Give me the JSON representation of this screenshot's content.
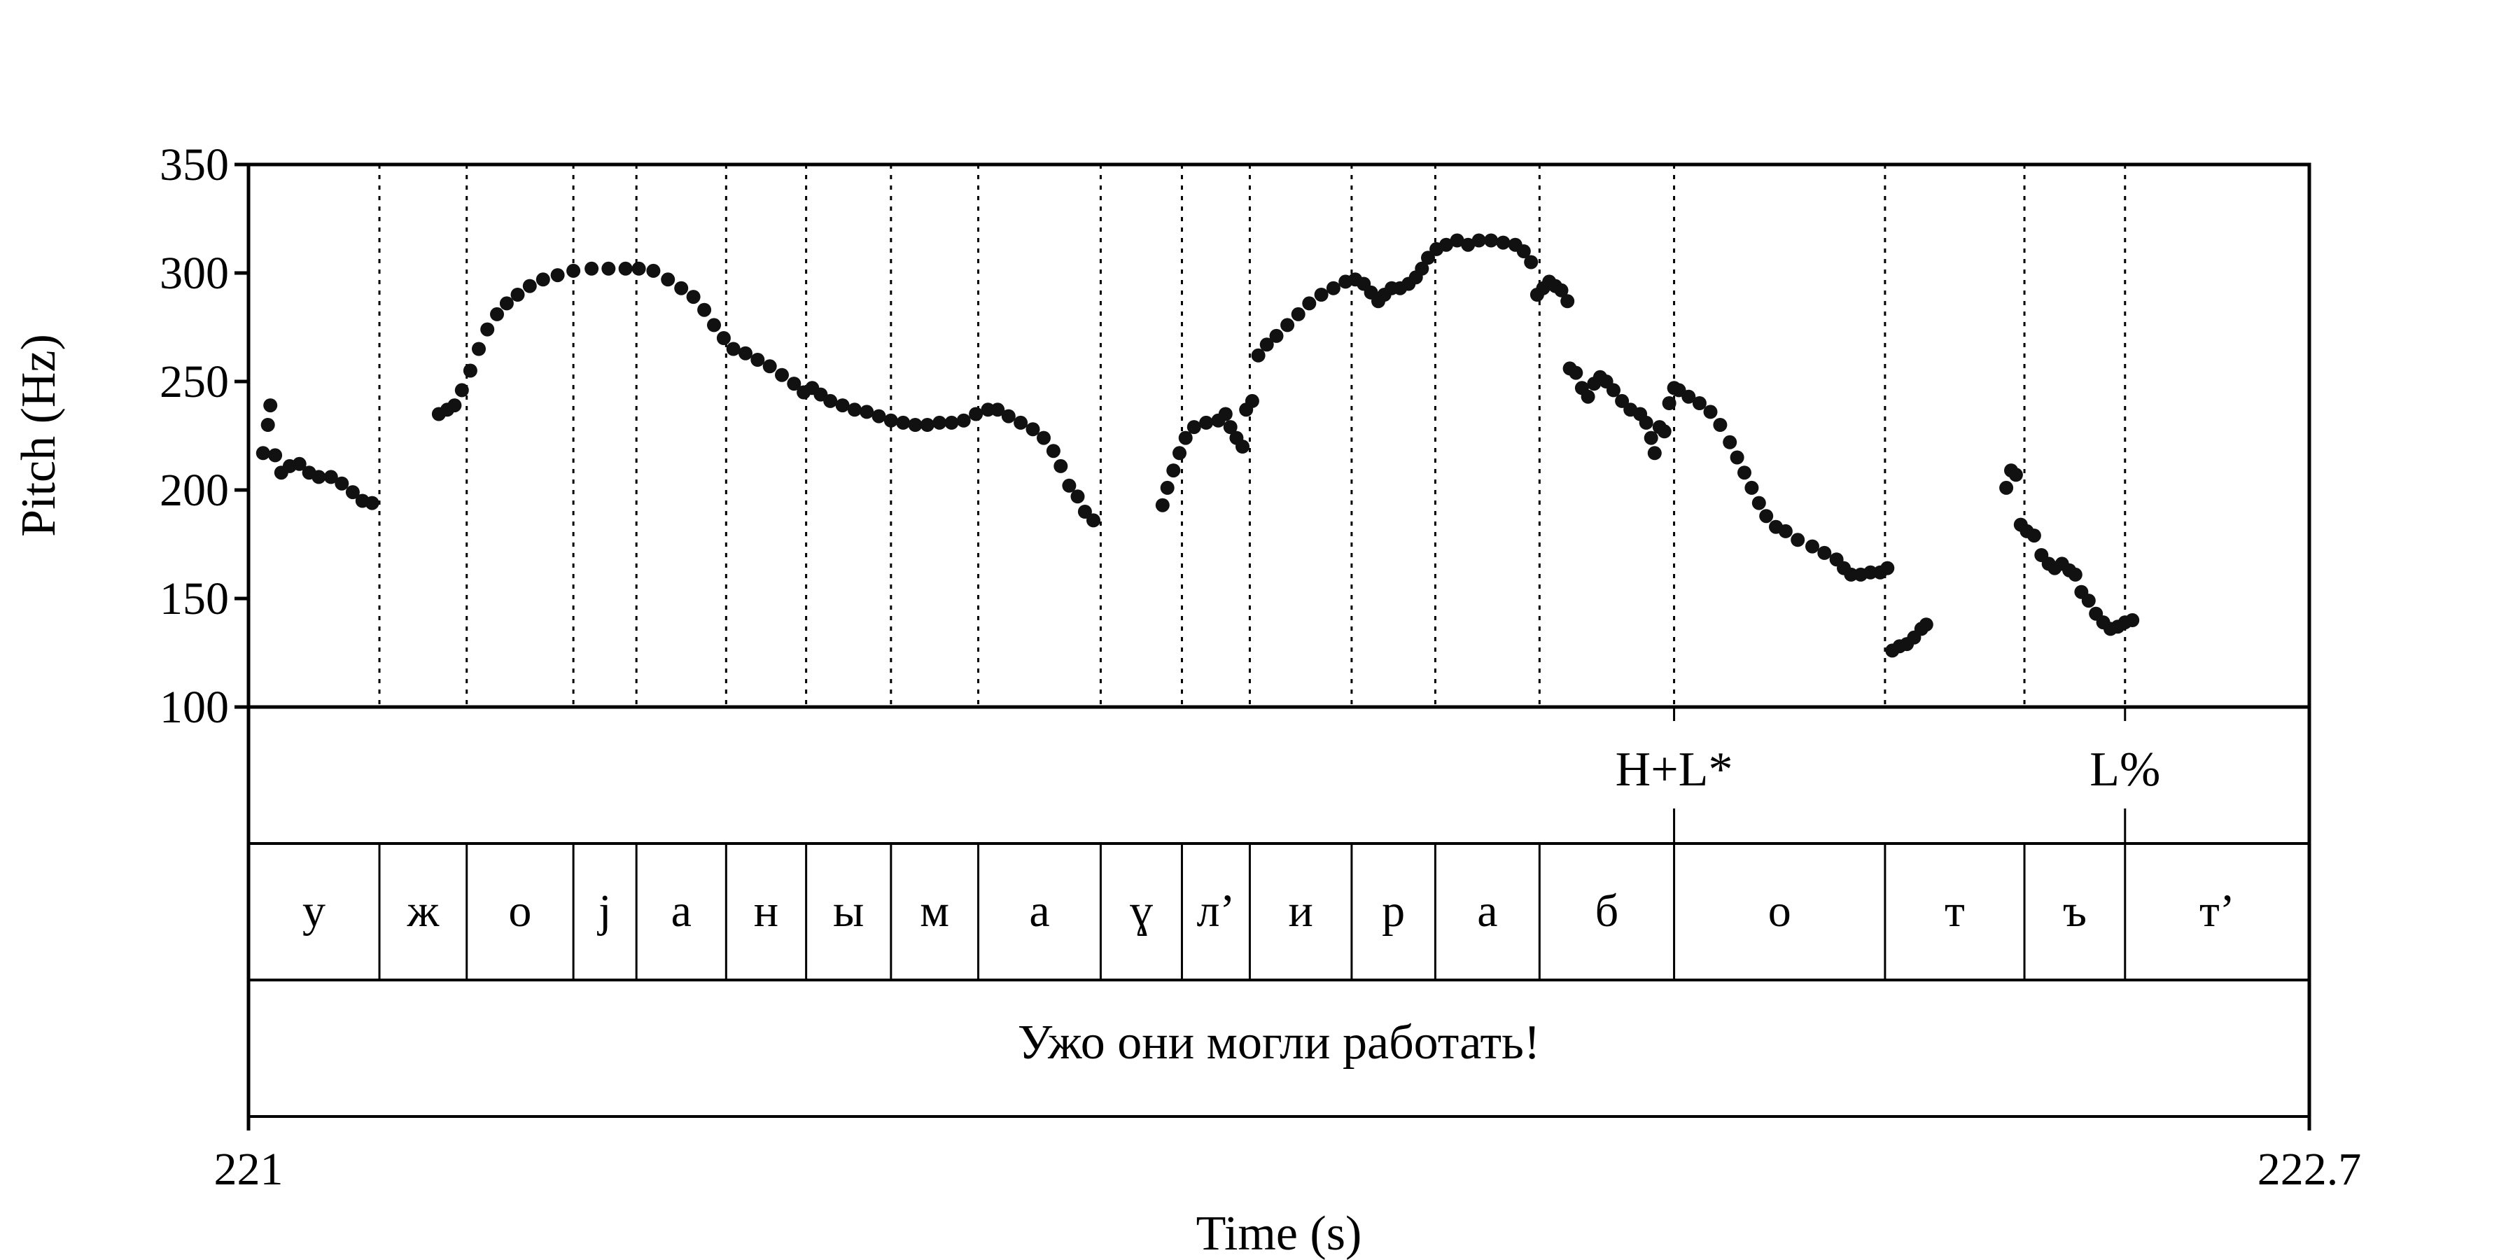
{
  "chart_data": {
    "type": "scatter",
    "title": "",
    "xlabel": "Time (s)",
    "ylabel": "Pitch (Hz)",
    "xlim": [
      221,
      222.7
    ],
    "ylim": [
      100,
      350
    ],
    "x_tick_labels": [
      "221",
      "222.7"
    ],
    "y_ticks": [
      100,
      150,
      200,
      250,
      300,
      350
    ],
    "grid": false,
    "marker_color": "#111111",
    "segment_boundaries": [
      221.108,
      221.18,
      221.268,
      221.32,
      221.394,
      221.46,
      221.53,
      221.602,
      221.703,
      221.77,
      221.826,
      221.91,
      221.979,
      222.065,
      222.176,
      222.35,
      222.465,
      222.548
    ],
    "phone_tier": [
      {
        "label": "у",
        "start": 221.0,
        "end": 221.108
      },
      {
        "label": "ж",
        "start": 221.108,
        "end": 221.18
      },
      {
        "label": "о",
        "start": 221.18,
        "end": 221.268
      },
      {
        "label": "j",
        "start": 221.268,
        "end": 221.32
      },
      {
        "label": "а",
        "start": 221.32,
        "end": 221.394
      },
      {
        "label": "н",
        "start": 221.394,
        "end": 221.46
      },
      {
        "label": "ы",
        "start": 221.46,
        "end": 221.53
      },
      {
        "label": "м",
        "start": 221.53,
        "end": 221.602
      },
      {
        "label": "а",
        "start": 221.602,
        "end": 221.703
      },
      {
        "label": "ɣ",
        "start": 221.703,
        "end": 221.77
      },
      {
        "label": "л’",
        "start": 221.77,
        "end": 221.826
      },
      {
        "label": "и",
        "start": 221.826,
        "end": 221.91
      },
      {
        "label": "р",
        "start": 221.91,
        "end": 221.979
      },
      {
        "label": "а",
        "start": 221.979,
        "end": 222.065
      },
      {
        "label": "б",
        "start": 222.065,
        "end": 222.176
      },
      {
        "label": "о",
        "start": 222.176,
        "end": 222.35
      },
      {
        "label": "т",
        "start": 222.35,
        "end": 222.465
      },
      {
        "label": "ъ",
        "start": 222.465,
        "end": 222.548
      },
      {
        "label": "т’",
        "start": 222.548,
        "end": 222.7
      }
    ],
    "tone_tier": [
      {
        "label": "H+L*",
        "time": 222.176
      },
      {
        "label": "L%",
        "time": 222.548
      }
    ],
    "sentence_tier": {
      "label": "Ужо они могли работать!",
      "start": 221.0,
      "end": 222.7
    },
    "series": [
      {
        "points": [
          [
            221.012,
            217
          ],
          [
            221.016,
            230
          ],
          [
            221.018,
            239
          ],
          [
            221.022,
            216
          ],
          [
            221.027,
            208
          ],
          [
            221.034,
            211
          ],
          [
            221.042,
            212
          ],
          [
            221.05,
            208
          ],
          [
            221.058,
            206
          ],
          [
            221.068,
            206
          ],
          [
            221.077,
            203
          ],
          [
            221.086,
            199
          ],
          [
            221.094,
            195
          ],
          [
            221.102,
            194
          ],
          [
            221.157,
            235
          ],
          [
            221.164,
            237
          ],
          [
            221.17,
            239
          ],
          [
            221.176,
            246
          ],
          [
            221.183,
            255
          ],
          [
            221.19,
            265
          ],
          [
            221.197,
            274
          ],
          [
            221.205,
            281
          ],
          [
            221.213,
            286
          ],
          [
            221.222,
            290
          ],
          [
            221.232,
            294
          ],
          [
            221.243,
            297
          ],
          [
            221.255,
            299
          ],
          [
            221.268,
            301
          ],
          [
            221.283,
            302
          ],
          [
            221.297,
            302
          ],
          [
            221.311,
            302
          ],
          [
            221.322,
            302
          ],
          [
            221.334,
            301
          ],
          [
            221.346,
            297
          ],
          [
            221.357,
            293
          ],
          [
            221.367,
            289
          ],
          [
            221.376,
            283
          ],
          [
            221.384,
            276
          ],
          [
            221.392,
            270
          ],
          [
            221.4,
            265
          ],
          [
            221.41,
            263
          ],
          [
            221.42,
            260
          ],
          [
            221.43,
            257
          ],
          [
            221.44,
            253
          ],
          [
            221.45,
            249
          ],
          [
            221.458,
            245
          ],
          [
            221.465,
            247
          ],
          [
            221.472,
            244
          ],
          [
            221.48,
            241
          ],
          [
            221.49,
            239
          ],
          [
            221.5,
            237
          ],
          [
            221.51,
            236
          ],
          [
            221.52,
            234
          ],
          [
            221.53,
            232
          ],
          [
            221.54,
            231
          ],
          [
            221.55,
            230
          ],
          [
            221.56,
            230
          ],
          [
            221.57,
            231
          ],
          [
            221.58,
            231
          ],
          [
            221.59,
            232
          ],
          [
            221.6,
            235
          ],
          [
            221.61,
            237
          ],
          [
            221.618,
            237
          ],
          [
            221.627,
            234
          ],
          [
            221.637,
            231
          ],
          [
            221.647,
            228
          ],
          [
            221.656,
            224
          ],
          [
            221.664,
            218
          ],
          [
            221.67,
            211
          ],
          [
            221.677,
            202
          ],
          [
            221.684,
            197
          ],
          [
            221.69,
            190
          ],
          [
            221.697,
            186
          ],
          [
            221.754,
            193
          ],
          [
            221.758,
            201
          ],
          [
            221.763,
            209
          ],
          [
            221.768,
            217
          ],
          [
            221.773,
            224
          ],
          [
            221.78,
            229
          ],
          [
            221.79,
            231
          ],
          [
            221.8,
            232
          ],
          [
            221.806,
            235
          ],
          [
            221.81,
            229
          ],
          [
            221.815,
            224
          ],
          [
            221.82,
            220
          ],
          [
            221.823,
            237
          ],
          [
            221.828,
            241
          ],
          [
            221.833,
            262
          ],
          [
            221.84,
            267
          ],
          [
            221.848,
            271
          ],
          [
            221.857,
            276
          ],
          [
            221.866,
            281
          ],
          [
            221.875,
            286
          ],
          [
            221.885,
            290
          ],
          [
            221.895,
            293
          ],
          [
            221.905,
            296
          ],
          [
            221.913,
            297
          ],
          [
            221.92,
            295
          ],
          [
            221.926,
            291
          ],
          [
            221.932,
            287
          ],
          [
            221.937,
            290
          ],
          [
            221.943,
            293
          ],
          [
            221.95,
            293
          ],
          [
            221.957,
            295
          ],
          [
            221.963,
            298
          ],
          [
            221.968,
            302
          ],
          [
            221.973,
            307
          ],
          [
            221.98,
            311
          ],
          [
            221.988,
            313
          ],
          [
            221.997,
            315
          ],
          [
            222.006,
            313
          ],
          [
            222.015,
            315
          ],
          [
            222.025,
            315
          ],
          [
            222.035,
            314
          ],
          [
            222.045,
            313
          ],
          [
            222.052,
            310
          ],
          [
            222.058,
            305
          ],
          [
            222.063,
            290
          ],
          [
            222.068,
            293
          ],
          [
            222.073,
            296
          ],
          [
            222.078,
            294
          ],
          [
            222.083,
            292
          ],
          [
            222.088,
            287
          ],
          [
            222.09,
            256
          ],
          [
            222.095,
            254
          ],
          [
            222.1,
            247
          ],
          [
            222.105,
            243
          ],
          [
            222.11,
            249
          ],
          [
            222.115,
            252
          ],
          [
            222.12,
            250
          ],
          [
            222.126,
            246
          ],
          [
            222.133,
            241
          ],
          [
            222.14,
            237
          ],
          [
            222.148,
            235
          ],
          [
            222.153,
            231
          ],
          [
            222.157,
            224
          ],
          [
            222.16,
            217
          ],
          [
            222.164,
            229
          ],
          [
            222.168,
            227
          ],
          [
            222.172,
            240
          ],
          [
            222.176,
            247
          ],
          [
            222.18,
            246
          ],
          [
            222.188,
            243
          ],
          [
            222.197,
            240
          ],
          [
            222.206,
            236
          ],
          [
            222.214,
            230
          ],
          [
            222.222,
            222
          ],
          [
            222.228,
            215
          ],
          [
            222.234,
            208
          ],
          [
            222.24,
            201
          ],
          [
            222.246,
            194
          ],
          [
            222.252,
            188
          ],
          [
            222.26,
            183
          ],
          [
            222.268,
            181
          ],
          [
            222.278,
            177
          ],
          [
            222.29,
            174
          ],
          [
            222.3,
            171
          ],
          [
            222.31,
            168
          ],
          [
            222.316,
            164
          ],
          [
            222.322,
            161
          ],
          [
            222.33,
            161
          ],
          [
            222.338,
            162
          ],
          [
            222.346,
            162
          ],
          [
            222.352,
            164
          ],
          [
            222.356,
            126
          ],
          [
            222.362,
            128
          ],
          [
            222.368,
            129
          ],
          [
            222.374,
            132
          ],
          [
            222.38,
            136
          ],
          [
            222.384,
            138
          ],
          [
            222.45,
            201
          ],
          [
            222.454,
            209
          ],
          [
            222.458,
            207
          ],
          [
            222.462,
            184
          ],
          [
            222.467,
            181
          ],
          [
            222.473,
            179
          ],
          [
            222.479,
            170
          ],
          [
            222.485,
            166
          ],
          [
            222.49,
            164
          ],
          [
            222.496,
            166
          ],
          [
            222.502,
            163
          ],
          [
            222.507,
            161
          ],
          [
            222.512,
            153
          ],
          [
            222.518,
            149
          ],
          [
            222.524,
            143
          ],
          [
            222.53,
            139
          ],
          [
            222.536,
            136
          ],
          [
            222.542,
            137
          ],
          [
            222.548,
            139
          ],
          [
            222.554,
            140
          ]
        ]
      }
    ]
  }
}
